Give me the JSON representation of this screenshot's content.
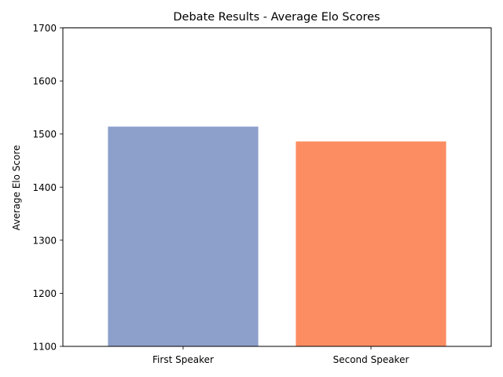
{
  "chart_data": {
    "type": "bar",
    "title": "Debate Results - Average Elo Scores",
    "xlabel": "",
    "ylabel": "Average Elo Score",
    "categories": [
      "First Speaker",
      "Second Speaker"
    ],
    "values": [
      1514,
      1486
    ],
    "colors": [
      "#8da0cb",
      "#fc8d62"
    ],
    "ylim": [
      1100,
      1700
    ],
    "yticks": [
      "1100",
      "1200",
      "1300",
      "1400",
      "1500",
      "1600",
      "1700"
    ],
    "grid": false,
    "legend": "none"
  }
}
